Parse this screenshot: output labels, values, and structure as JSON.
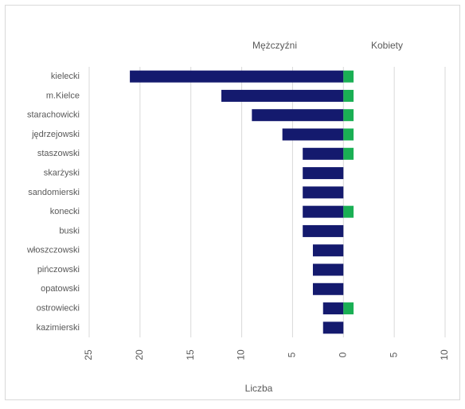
{
  "chart_data": {
    "type": "butterfly-bar",
    "x_label": "Liczba",
    "categories": [
      "kielecki",
      "m.Kielce",
      "starachowicki",
      "jędrzejowski",
      "staszowski",
      "skarżyski",
      "sandomierski",
      "konecki",
      "buski",
      "włoszczowski",
      "pińczowski",
      "opatowski",
      "ostrowiecki",
      "kazimierski"
    ],
    "series": [
      {
        "name": "Mężczyźni",
        "color": "#141a6e",
        "values": [
          -21,
          -12,
          -9,
          -6,
          -4,
          -4,
          -4,
          -4,
          -4,
          -3,
          -3,
          -3,
          -2,
          -2
        ]
      },
      {
        "name": "Kobiety",
        "color": "#1aaf54",
        "values": [
          1,
          1,
          1,
          1,
          1,
          0,
          0,
          1,
          0,
          0,
          0,
          0,
          1,
          0
        ]
      }
    ],
    "xlim": [
      -25,
      10
    ],
    "xticks": [
      {
        "value": -25,
        "label": "25"
      },
      {
        "value": -20,
        "label": "20"
      },
      {
        "value": -15,
        "label": "15"
      },
      {
        "value": -10,
        "label": "10"
      },
      {
        "value": -5,
        "label": "5"
      },
      0,
      5,
      10
    ],
    "grid": true
  }
}
